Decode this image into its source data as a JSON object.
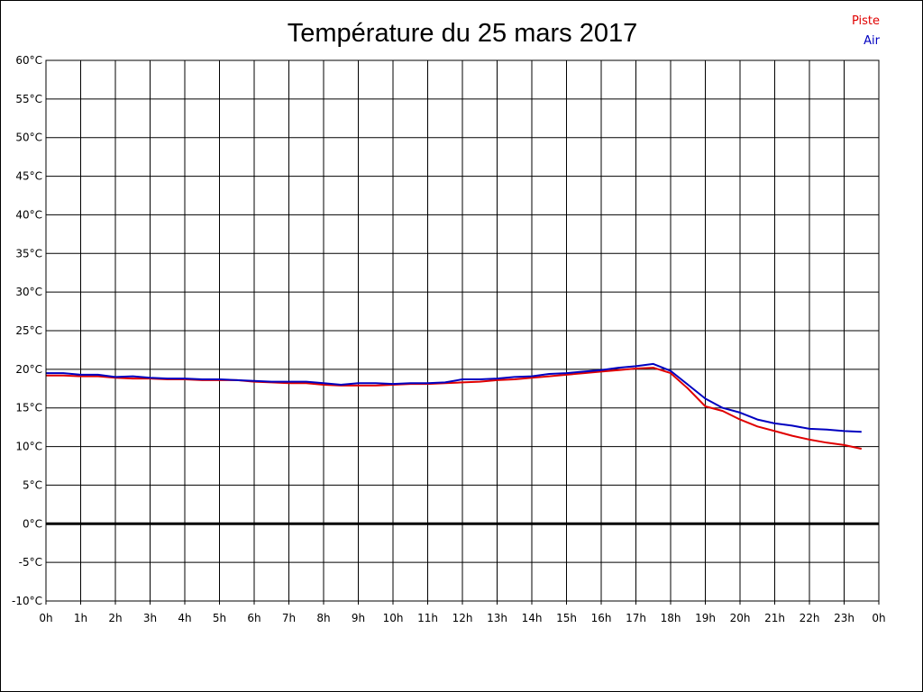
{
  "chart_data": {
    "type": "line",
    "title": "Température du 25 mars 2017",
    "xlabel": "",
    "ylabel": "",
    "x_ticks": [
      "0h",
      "1h",
      "2h",
      "3h",
      "4h",
      "5h",
      "6h",
      "7h",
      "8h",
      "9h",
      "10h",
      "11h",
      "12h",
      "13h",
      "14h",
      "15h",
      "16h",
      "17h",
      "18h",
      "19h",
      "20h",
      "21h",
      "22h",
      "23h",
      "0h"
    ],
    "y_ticks": [
      "60°C",
      "55°C",
      "50°C",
      "45°C",
      "40°C",
      "35°C",
      "30°C",
      "25°C",
      "20°C",
      "15°C",
      "10°C",
      "5°C",
      "0°C",
      "-5°C",
      "-10°C"
    ],
    "xlim": [
      0,
      24
    ],
    "ylim": [
      -10,
      60
    ],
    "grid": true,
    "legend_position": "top-right",
    "series": [
      {
        "name": "Piste",
        "color": "#e00000",
        "x": [
          0,
          0.5,
          1,
          1.5,
          2,
          2.5,
          3,
          3.5,
          4,
          4.5,
          5,
          5.5,
          6,
          6.5,
          7,
          7.5,
          8,
          8.5,
          9,
          9.5,
          10,
          10.5,
          11,
          11.5,
          12,
          12.5,
          13,
          13.5,
          14,
          14.5,
          15,
          15.5,
          16,
          16.5,
          17,
          17.5,
          18,
          18.5,
          19,
          19.5,
          20,
          20.5,
          21,
          21.5,
          22,
          22.5,
          23,
          23.5
        ],
        "values": [
          19.2,
          19.2,
          19.1,
          19.1,
          18.9,
          18.8,
          18.8,
          18.7,
          18.7,
          18.6,
          18.6,
          18.6,
          18.4,
          18.3,
          18.2,
          18.2,
          18.0,
          17.9,
          17.9,
          17.9,
          18.0,
          18.1,
          18.1,
          18.2,
          18.3,
          18.4,
          18.6,
          18.7,
          18.9,
          19.1,
          19.3,
          19.5,
          19.7,
          19.9,
          20.1,
          20.2,
          19.5,
          17.5,
          15.2,
          14.6,
          13.5,
          12.6,
          12.0,
          11.4,
          10.9,
          10.5,
          10.2,
          9.7
        ]
      },
      {
        "name": "Air",
        "color": "#0000c0",
        "x": [
          0,
          0.5,
          1,
          1.5,
          2,
          2.5,
          3,
          3.5,
          4,
          4.5,
          5,
          5.5,
          6,
          6.5,
          7,
          7.5,
          8,
          8.5,
          9,
          9.5,
          10,
          10.5,
          11,
          11.5,
          12,
          12.5,
          13,
          13.5,
          14,
          14.5,
          15,
          15.5,
          16,
          16.5,
          17,
          17.5,
          18,
          18.5,
          19,
          19.5,
          20,
          20.5,
          21,
          21.5,
          22,
          22.5,
          23,
          23.5
        ],
        "values": [
          19.5,
          19.5,
          19.3,
          19.3,
          19.0,
          19.1,
          18.9,
          18.8,
          18.8,
          18.7,
          18.7,
          18.6,
          18.5,
          18.4,
          18.4,
          18.4,
          18.2,
          18.0,
          18.2,
          18.2,
          18.1,
          18.2,
          18.2,
          18.3,
          18.7,
          18.7,
          18.8,
          19.0,
          19.1,
          19.4,
          19.5,
          19.7,
          19.9,
          20.2,
          20.4,
          20.7,
          19.8,
          18.0,
          16.2,
          15.0,
          14.4,
          13.5,
          13.0,
          12.7,
          12.3,
          12.2,
          12.0,
          11.9
        ]
      }
    ],
    "reference_line": {
      "value": 0,
      "color": "#000000"
    }
  }
}
